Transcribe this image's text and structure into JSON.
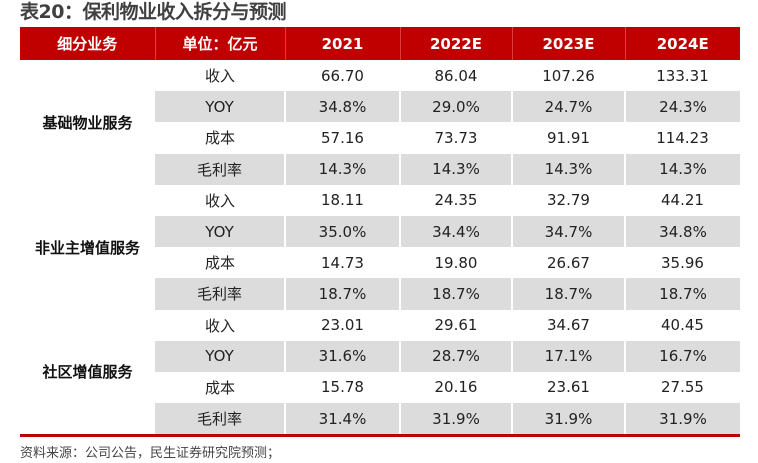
{
  "title": "表20：保利物业收入拆分与预测",
  "headers": [
    "细分业务",
    "单位：亿元",
    "2021",
    "2022E",
    "2023E",
    "2024E"
  ],
  "groups": [
    {
      "name": "基础物业服务",
      "rows": [
        {
          "label": "收入",
          "values": [
            "66.70",
            "86.04",
            "107.26",
            "133.31"
          ]
        },
        {
          "label": "YOY",
          "values": [
            "34.8%",
            "29.0%",
            "24.7%",
            "24.3%"
          ]
        },
        {
          "label": "成本",
          "values": [
            "57.16",
            "73.73",
            "91.91",
            "114.23"
          ]
        },
        {
          "label": "毛利率",
          "values": [
            "14.3%",
            "14.3%",
            "14.3%",
            "14.3%"
          ]
        }
      ]
    },
    {
      "name": "非业主增值服务",
      "rows": [
        {
          "label": "收入",
          "values": [
            "18.11",
            "24.35",
            "32.79",
            "44.21"
          ]
        },
        {
          "label": "YOY",
          "values": [
            "35.0%",
            "34.4%",
            "34.7%",
            "34.8%"
          ]
        },
        {
          "label": "成本",
          "values": [
            "14.73",
            "19.80",
            "26.67",
            "35.96"
          ]
        },
        {
          "label": "毛利率",
          "values": [
            "18.7%",
            "18.7%",
            "18.7%",
            "18.7%"
          ]
        }
      ]
    },
    {
      "name": "社区增值服务",
      "rows": [
        {
          "label": "收入",
          "values": [
            "23.01",
            "29.61",
            "34.67",
            "40.45"
          ]
        },
        {
          "label": "YOY",
          "values": [
            "31.6%",
            "28.7%",
            "17.1%",
            "16.7%"
          ]
        },
        {
          "label": "成本",
          "values": [
            "15.78",
            "20.16",
            "23.61",
            "27.55"
          ]
        },
        {
          "label": "毛利率",
          "values": [
            "31.4%",
            "31.9%",
            "31.9%",
            "31.9%"
          ]
        }
      ]
    }
  ],
  "source": "资料来源：公司公告，民生证券研究院预测；"
}
